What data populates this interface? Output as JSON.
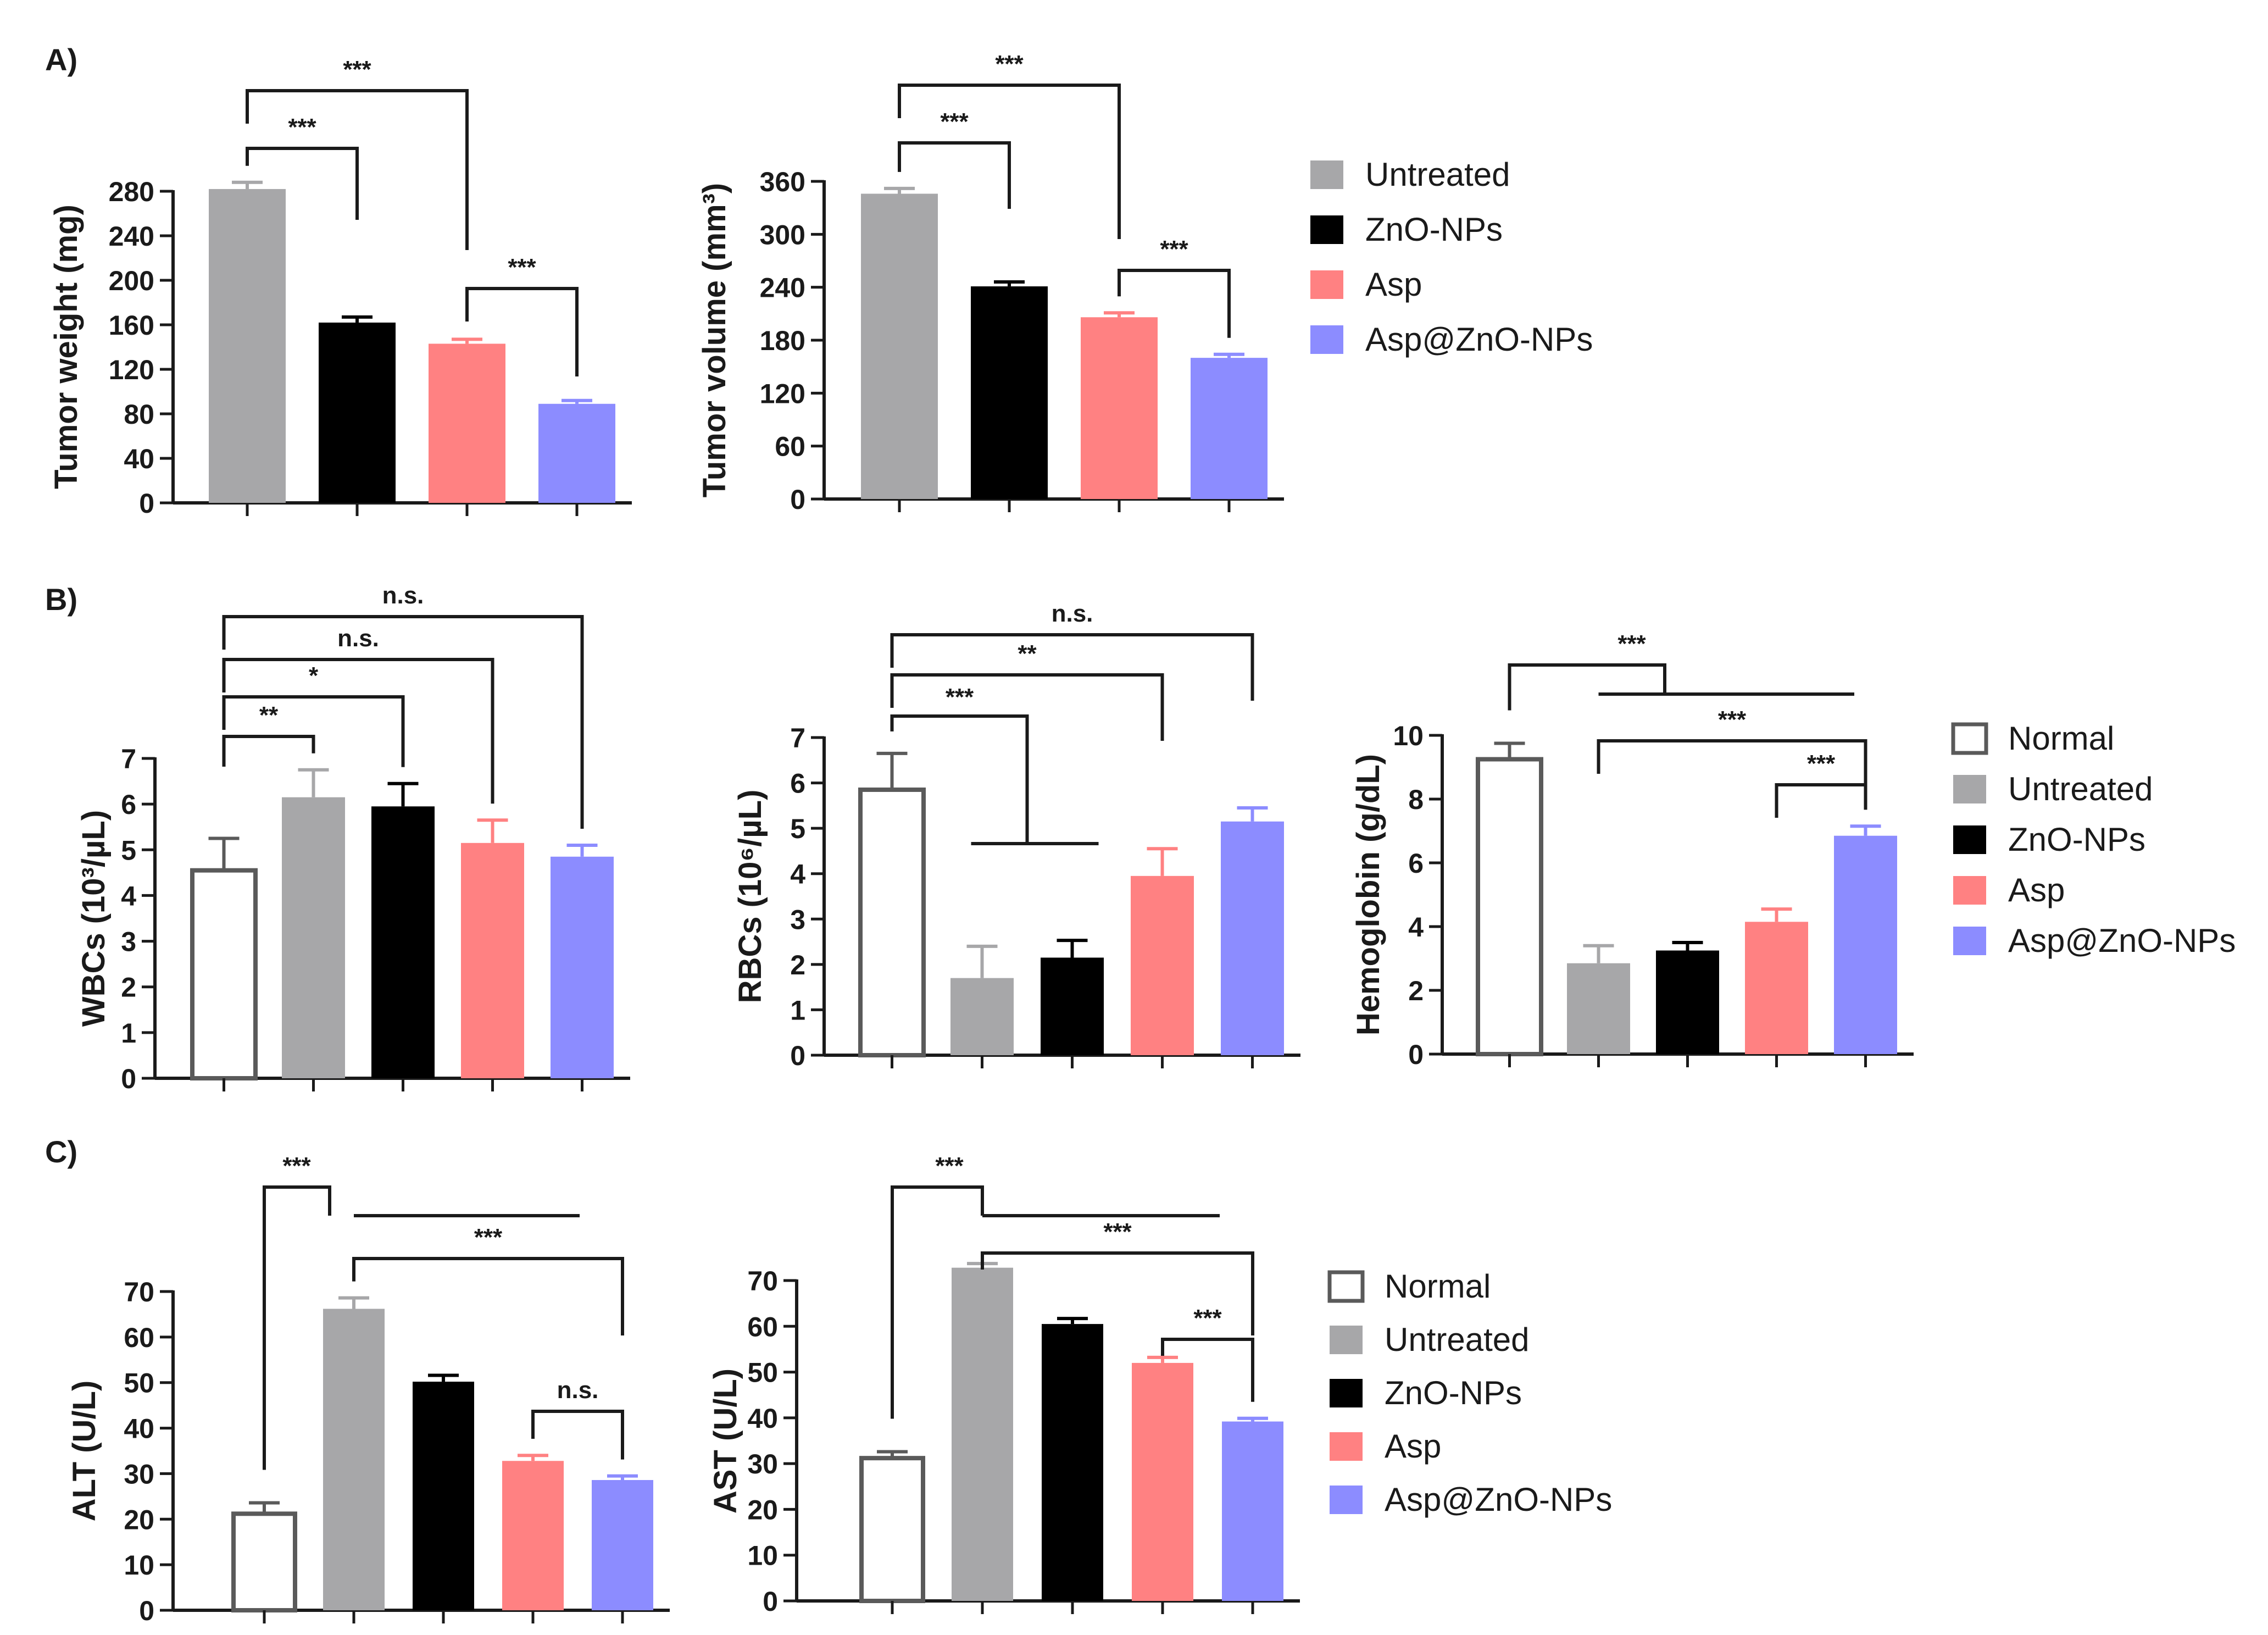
{
  "panels": [
    {
      "label": "A)"
    },
    {
      "label": "B)"
    },
    {
      "label": "C)"
    }
  ],
  "colors": {
    "Normal": "#ffffff",
    "Untreated": "#a7a7a9",
    "ZnO-NPs": "#000000",
    "Asp": "#ff8182",
    "Asp@ZnO-NPs": "#8c8cff"
  },
  "legends": [
    {
      "items": [
        "Untreated",
        "ZnO-NPs",
        "Asp",
        "Asp@ZnO-NPs"
      ]
    },
    {
      "items": [
        "Normal",
        "Untreated",
        "ZnO-NPs",
        "Asp",
        "Asp@ZnO-NPs"
      ]
    },
    {
      "items": [
        "Normal",
        "Untreated",
        "ZnO-NPs",
        "Asp",
        "Asp@ZnO-NPs"
      ]
    }
  ],
  "chart_data": [
    {
      "type": "bar",
      "title": "",
      "ylabel": "Tumor weight (mg)",
      "ylim": [
        0,
        280
      ],
      "yticks": [
        "0",
        "40",
        "80",
        "120",
        "160",
        "200",
        "240",
        "280"
      ],
      "categories": [
        "Untreated",
        "ZnO-NPs",
        "Asp",
        "Asp@ZnO-NPs"
      ],
      "values": [
        282,
        162,
        143,
        89
      ],
      "errors": [
        6,
        5,
        4,
        3
      ],
      "significance": [
        {
          "from": 0,
          "to": 1,
          "label": "***"
        },
        {
          "from": 0,
          "to": 2,
          "label": "***"
        },
        {
          "from": 2,
          "to": 3,
          "label": "***"
        }
      ]
    },
    {
      "type": "bar",
      "title": "",
      "ylabel": "Tumor volume (mm³)",
      "ylim": [
        0,
        360
      ],
      "yticks": [
        "0",
        "60",
        "120",
        "180",
        "240",
        "300",
        "360"
      ],
      "categories": [
        "Untreated",
        "ZnO-NPs",
        "Asp",
        "Asp@ZnO-NPs"
      ],
      "values": [
        346,
        241,
        206,
        160
      ],
      "errors": [
        6,
        5,
        5,
        4
      ],
      "significance": [
        {
          "from": 0,
          "to": 1,
          "label": "***"
        },
        {
          "from": 0,
          "to": 2,
          "label": "***"
        },
        {
          "from": 2,
          "to": 3,
          "label": "***"
        }
      ]
    },
    {
      "type": "bar",
      "title": "",
      "ylabel": "WBCs (10³/µL)",
      "ylim": [
        0,
        7
      ],
      "yticks": [
        "0",
        "1",
        "2",
        "3",
        "4",
        "5",
        "6",
        "7"
      ],
      "categories": [
        "Normal",
        "Untreated",
        "ZnO-NPs",
        "Asp",
        "Asp@ZnO-NPs"
      ],
      "values": [
        4.55,
        6.15,
        5.95,
        5.15,
        4.85
      ],
      "errors": [
        0.7,
        0.6,
        0.5,
        0.5,
        0.25
      ],
      "significance": [
        {
          "from": 0,
          "to": 1,
          "label": "**"
        },
        {
          "from": 0,
          "to": 2,
          "label": "*"
        },
        {
          "from": 0,
          "to": 3,
          "label": "n.s."
        },
        {
          "from": 0,
          "to": 4,
          "label": "n.s."
        }
      ]
    },
    {
      "type": "bar",
      "title": "",
      "ylabel": "RBCs (10⁶/µL)",
      "ylim": [
        0,
        7
      ],
      "yticks": [
        "0",
        "1",
        "2",
        "3",
        "4",
        "5",
        "6",
        "7"
      ],
      "categories": [
        "Normal",
        "Untreated",
        "ZnO-NPs",
        "Asp",
        "Asp@ZnO-NPs"
      ],
      "values": [
        5.85,
        1.7,
        2.15,
        3.95,
        5.15
      ],
      "errors": [
        0.8,
        0.7,
        0.38,
        0.6,
        0.3
      ],
      "significance": [
        {
          "from": 0,
          "to": [
            1,
            2
          ],
          "label": "***"
        },
        {
          "from": 0,
          "to": 3,
          "label": "**"
        },
        {
          "from": 0,
          "to": 4,
          "label": "n.s."
        }
      ]
    },
    {
      "type": "bar",
      "title": "",
      "ylabel": "Hemoglobin (g/dL)",
      "ylim": [
        0,
        10
      ],
      "yticks": [
        "0",
        "2",
        "4",
        "6",
        "8",
        "10"
      ],
      "categories": [
        "Normal",
        "Untreated",
        "ZnO-NPs",
        "Asp",
        "Asp@ZnO-NPs"
      ],
      "values": [
        9.25,
        2.85,
        3.25,
        4.15,
        6.85
      ],
      "errors": [
        0.5,
        0.55,
        0.25,
        0.4,
        0.3
      ],
      "significance": [
        {
          "from": 0,
          "to": [
            1,
            2,
            3,
            4
          ],
          "label": "***"
        },
        {
          "from": 1,
          "to": 4,
          "label": "***"
        },
        {
          "from": 3,
          "to": 4,
          "label": "***"
        }
      ]
    },
    {
      "type": "bar",
      "title": "",
      "ylabel": "ALT (U/L)",
      "ylim": [
        0,
        70
      ],
      "yticks": [
        "0",
        "10",
        "20",
        "30",
        "40",
        "50",
        "60",
        "70"
      ],
      "categories": [
        "Normal",
        "Untreated",
        "ZnO-NPs",
        "Asp",
        "Asp@ZnO-NPs"
      ],
      "values": [
        21.2,
        66.2,
        50.2,
        32.8,
        28.6
      ],
      "errors": [
        2.4,
        2.4,
        1.4,
        1.2,
        0.9
      ],
      "significance": [
        {
          "from": 0,
          "to": [
            1,
            2,
            3,
            4
          ],
          "label": "***"
        },
        {
          "from": 1,
          "to": 4,
          "label": "***"
        },
        {
          "from": 3,
          "to": 4,
          "label": "n.s."
        }
      ]
    },
    {
      "type": "bar",
      "title": "",
      "ylabel": "AST (U/L)",
      "ylim": [
        0,
        70
      ],
      "yticks": [
        "0",
        "10",
        "20",
        "30",
        "40",
        "50",
        "60",
        "70"
      ],
      "categories": [
        "Normal",
        "Untreated",
        "ZnO-NPs",
        "Asp",
        "Asp@ZnO-NPs"
      ],
      "values": [
        31.2,
        72.8,
        60.5,
        52,
        39.2
      ],
      "errors": [
        1.4,
        0.9,
        1.2,
        1.2,
        0.7
      ],
      "significance": [
        {
          "from": 0,
          "to": [
            1,
            2,
            3,
            4
          ],
          "label": "***"
        },
        {
          "from": 1,
          "to": 4,
          "label": "***"
        },
        {
          "from": 3,
          "to": 4,
          "label": "***"
        }
      ]
    }
  ]
}
